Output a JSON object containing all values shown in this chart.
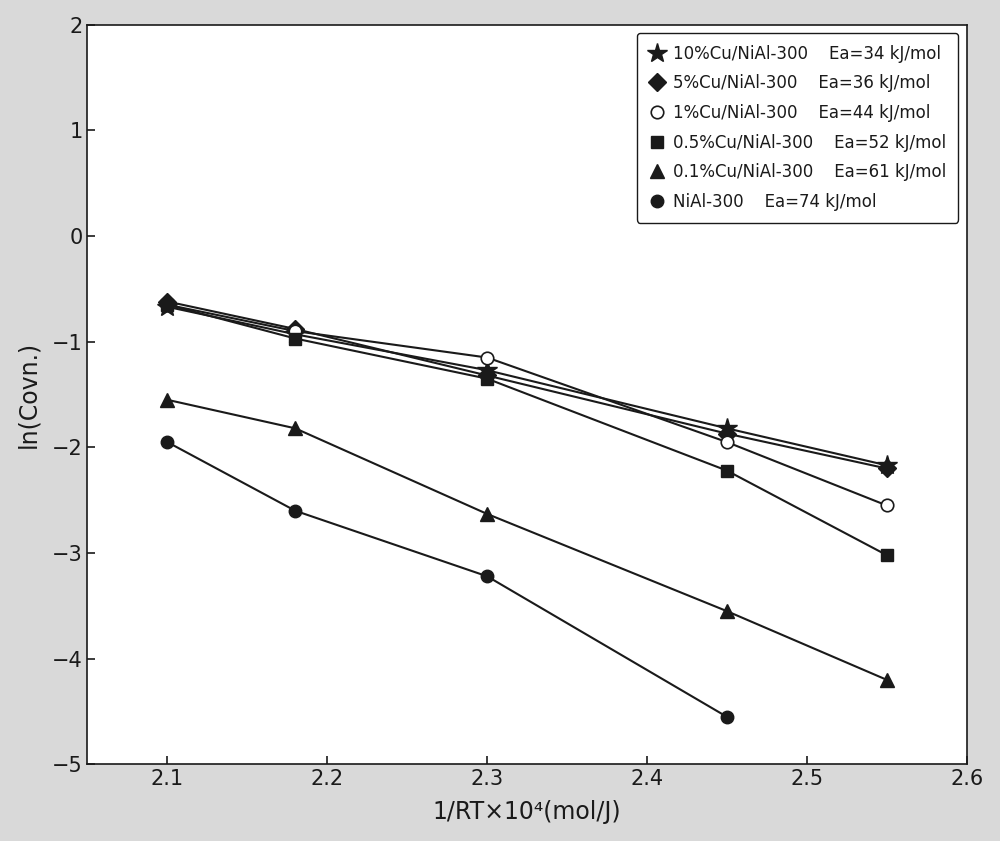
{
  "xlabel": "1/RT×10⁴(mol/J)",
  "ylabel": "ln(Covn.)",
  "xlim": [
    2.05,
    2.6
  ],
  "ylim": [
    -5,
    2
  ],
  "xticks": [
    2.1,
    2.2,
    2.3,
    2.4,
    2.5,
    2.6
  ],
  "yticks": [
    -5,
    -4,
    -3,
    -2,
    -1,
    0,
    1,
    2
  ],
  "outer_bg": "#d9d9d9",
  "plot_bg": "#ffffff",
  "series": [
    {
      "label": "10%Cu/NiAl-300",
      "ea_label": "Ea=34 kJ/mol",
      "marker": "*",
      "filled": true,
      "markersize": 15,
      "x": [
        2.1,
        2.18,
        2.3,
        2.45,
        2.55
      ],
      "y": [
        -0.67,
        -0.93,
        -1.27,
        -1.82,
        -2.17
      ]
    },
    {
      "label": "5%Cu/NiAl-300",
      "ea_label": "Ea=36 kJ/mol",
      "marker": "D",
      "filled": true,
      "markersize": 9,
      "x": [
        2.1,
        2.18,
        2.3,
        2.45,
        2.55
      ],
      "y": [
        -0.62,
        -0.88,
        -1.32,
        -1.87,
        -2.2
      ]
    },
    {
      "label": "1%Cu/NiAl-300",
      "ea_label": "Ea=44 kJ/mol",
      "marker": "o",
      "filled": false,
      "markersize": 9,
      "x": [
        2.1,
        2.18,
        2.3,
        2.45,
        2.55
      ],
      "y": [
        -0.65,
        -0.9,
        -1.15,
        -1.95,
        -2.55
      ]
    },
    {
      "label": "0.5%Cu/NiAl-300",
      "ea_label": "Ea=52 kJ/mol",
      "marker": "s",
      "filled": true,
      "markersize": 9,
      "x": [
        2.1,
        2.18,
        2.3,
        2.45,
        2.55
      ],
      "y": [
        -0.65,
        -0.97,
        -1.35,
        -2.22,
        -3.02
      ]
    },
    {
      "label": "0.1%Cu/NiAl-300",
      "ea_label": "Ea=61 kJ/mol",
      "marker": "^",
      "filled": true,
      "markersize": 10,
      "x": [
        2.1,
        2.18,
        2.3,
        2.45,
        2.55
      ],
      "y": [
        -1.55,
        -1.82,
        -2.63,
        -3.55,
        -4.2
      ]
    },
    {
      "label": "NiAl-300",
      "ea_label": "Ea=74 kJ/mol",
      "marker": "o",
      "filled": true,
      "markersize": 9,
      "x": [
        2.1,
        2.18,
        2.3,
        2.45
      ],
      "y": [
        -1.95,
        -2.6,
        -3.22,
        -4.55
      ]
    }
  ]
}
